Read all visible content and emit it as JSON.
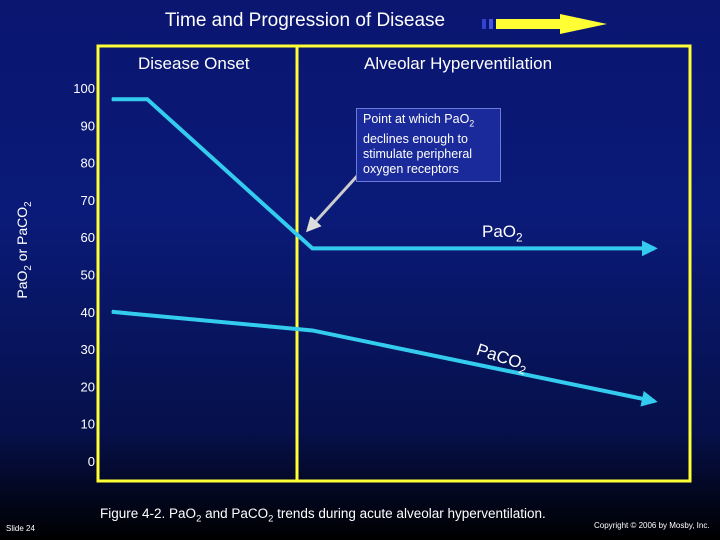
{
  "title": "Time and Progression of Disease",
  "sections": {
    "onset": "Disease Onset",
    "hyperventilation": "Alveolar Hyperventilation"
  },
  "callout": {
    "line1_pre": "Point at which Pa",
    "line1_o": "O",
    "line1_sub": "2",
    "line2": "declines enough to",
    "line3": "stimulate peripheral",
    "line4": "oxygen receptors"
  },
  "series_labels": {
    "pao2_pre": "Pa",
    "pao2_o": "O",
    "pao2_sub": "2",
    "paco2_pre": "Pa",
    "paco2_co": "CO",
    "paco2_sub": "2"
  },
  "caption": {
    "pre": "Figure 4-2. Pa",
    "o": "O",
    "sub1": "2",
    "mid": " and Pa",
    "co": "CO",
    "sub2": "2",
    "post": " trends during acute alveolar hyperventilation."
  },
  "footer": {
    "slide": "Slide 24",
    "copyright": "Copyright © 2006 by Mosby, Inc."
  },
  "colors": {
    "frame": "#ffff33",
    "series": "#33ccee",
    "arrow_yellow": "#ffff33",
    "pointer": "#ffffff"
  },
  "chart_data": {
    "type": "line",
    "ylabel_pre": "Pa",
    "ylabel_o": "O",
    "ylabel_sub1": "2",
    "ylabel_mid": " or Pa",
    "ylabel_co": "CO",
    "ylabel_sub2": "2",
    "ylim": [
      0,
      100
    ],
    "yticks": [
      "0",
      "10",
      "20",
      "30",
      "40",
      "50",
      "60",
      "70",
      "80",
      "90",
      "100"
    ],
    "x_range": [
      0,
      10
    ],
    "series": [
      {
        "id": "pao2",
        "points": [
          [
            0.2,
            97
          ],
          [
            0.8,
            97
          ],
          [
            3.6,
            57
          ],
          [
            9.4,
            57
          ]
        ]
      },
      {
        "id": "paco2",
        "points": [
          [
            0.2,
            40
          ],
          [
            3.6,
            35
          ],
          [
            9.4,
            16
          ]
        ]
      }
    ],
    "grid": false
  }
}
